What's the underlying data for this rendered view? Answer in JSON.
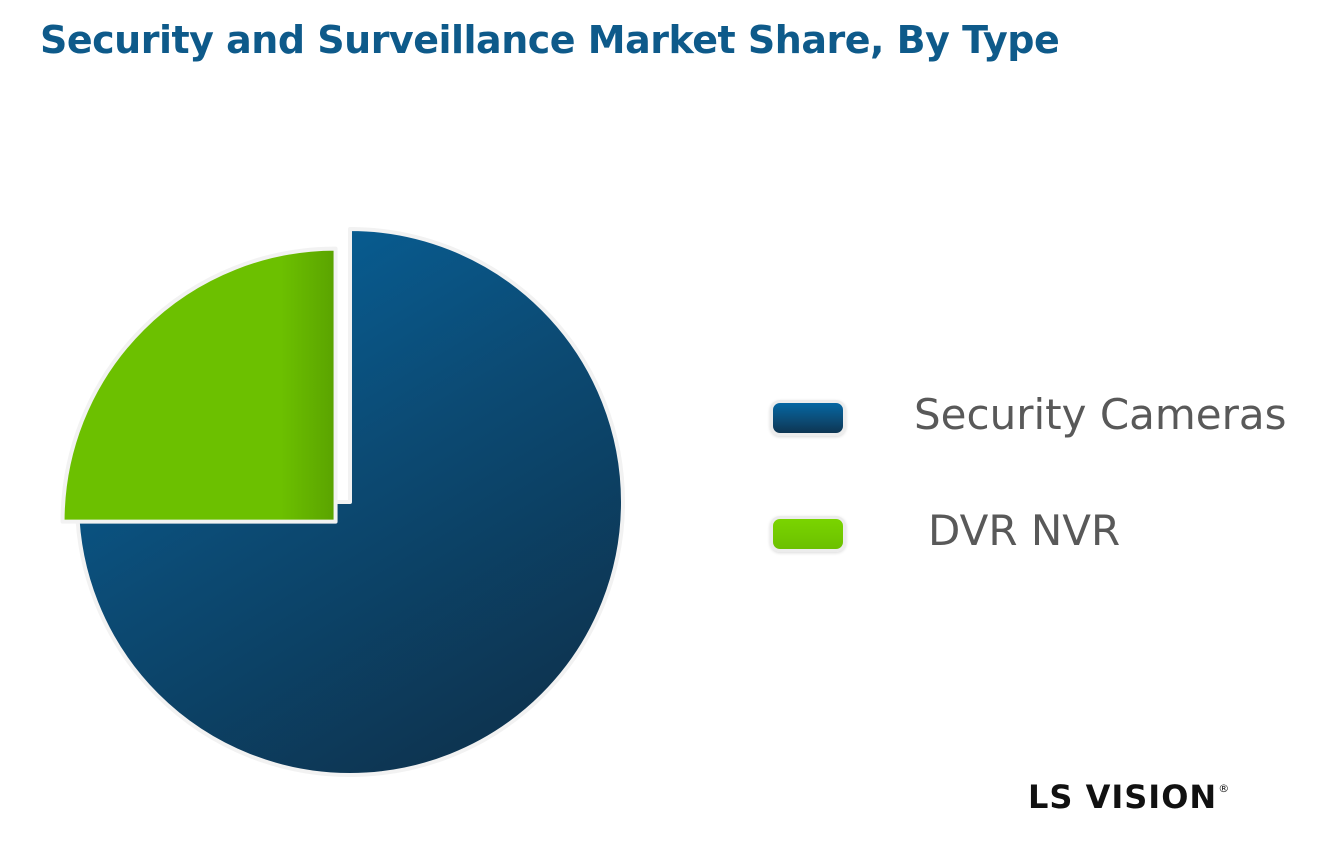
{
  "chart_data": {
    "type": "pie",
    "title": "Security and Surveillance Market Share, By Type",
    "categories": [
      "Security Cameras",
      "DVR NVR"
    ],
    "values": [
      75,
      25
    ],
    "colors": [
      "#0c4a73",
      "#6cc000"
    ],
    "legend_position": "right",
    "start_angle_deg": 0,
    "exploded_slice": "DVR NVR"
  },
  "branding": {
    "logo_text": "LS VISION",
    "logo_mark": "®"
  }
}
